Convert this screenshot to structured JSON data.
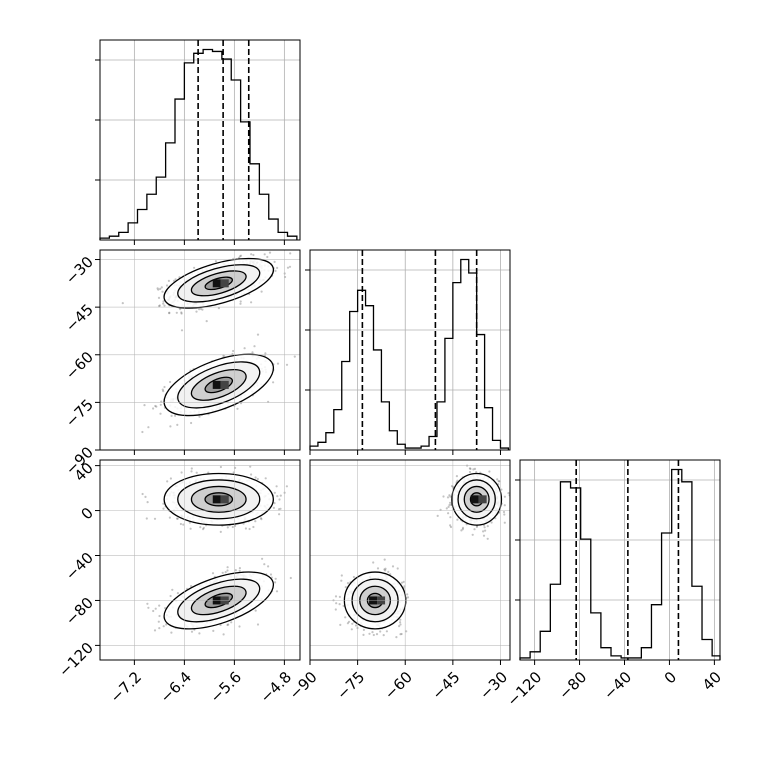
{
  "chart_data": {
    "type": "corner",
    "title": "",
    "parameters": [
      "",
      "",
      ""
    ],
    "grid": true,
    "ranges": [
      [
        -7.75,
        -4.55
      ],
      [
        -90,
        -27
      ],
      [
        -133,
        45
      ]
    ],
    "ticks": [
      [
        "-7.2",
        "-6.4",
        "-5.6",
        "-4.8"
      ],
      [
        "-90",
        "-75",
        "-60",
        "-45",
        "-30"
      ],
      [
        "-120",
        "-80",
        "-40",
        "0",
        "40"
      ]
    ],
    "quantiles": [
      [
        -6.18,
        -5.78,
        -5.37
      ],
      [
        -73.5,
        -50.5,
        -37.5
      ],
      [
        -83,
        -37,
        8
      ]
    ],
    "histograms": [
      {
        "bin_edges": [
          -7.75,
          -7.6,
          -7.45,
          -7.3,
          -7.15,
          -7.0,
          -6.85,
          -6.7,
          -6.55,
          -6.4,
          -6.25,
          -6.1,
          -5.95,
          -5.8,
          -5.65,
          -5.5,
          -5.35,
          -5.2,
          -5.05,
          -4.9,
          -4.75,
          -4.6
        ],
        "counts": [
          0.01,
          0.02,
          0.04,
          0.09,
          0.16,
          0.24,
          0.33,
          0.51,
          0.74,
          0.93,
          0.98,
          1.0,
          0.99,
          0.95,
          0.84,
          0.62,
          0.4,
          0.24,
          0.11,
          0.04,
          0.02
        ]
      },
      {
        "bin_edges": [
          -90,
          -87.5,
          -85,
          -82.5,
          -80,
          -77.5,
          -75,
          -72.5,
          -70,
          -67.5,
          -65,
          -62.5,
          -60,
          -57.5,
          -55,
          -52.5,
          -50,
          -47.5,
          -45,
          -42.5,
          -40,
          -37.5,
          -35,
          -32.5,
          -30,
          -27.5
        ],
        "counts": [
          0.02,
          0.04,
          0.09,
          0.21,
          0.46,
          0.72,
          0.83,
          0.75,
          0.52,
          0.25,
          0.1,
          0.03,
          0.01,
          0.01,
          0.02,
          0.07,
          0.25,
          0.58,
          0.87,
          0.99,
          0.92,
          0.6,
          0.22,
          0.05,
          0.01
        ]
      },
      {
        "bin_edges": [
          -133,
          -124,
          -115,
          -106,
          -97,
          -88,
          -79,
          -70,
          -61,
          -52,
          -43,
          -34,
          -25,
          -16,
          -7,
          2,
          11,
          20,
          29,
          38,
          45
        ],
        "counts": [
          0.01,
          0.04,
          0.14,
          0.37,
          0.87,
          0.84,
          0.59,
          0.23,
          0.06,
          0.02,
          0.01,
          0.01,
          0.06,
          0.27,
          0.62,
          0.93,
          0.87,
          0.36,
          0.1,
          0.02
        ]
      }
    ],
    "clusters": [
      {
        "weight": 0.55,
        "mean": [
          -5.85,
          -37.5,
          10
        ],
        "sd": [
          0.38,
          3.4,
          10
        ],
        "rho": {
          "xy": 0.55,
          "xz": 0.0,
          "yz": 0.0
        }
      },
      {
        "weight": 0.45,
        "mean": [
          -5.85,
          -69.5,
          -80
        ],
        "sd": [
          0.38,
          4.2,
          11
        ],
        "rho": {
          "xy": 0.55,
          "xz": 0.55,
          "yz": 0.0
        }
      }
    ],
    "joint_pairs": [
      {
        "row": 1,
        "col": 0,
        "x": 0,
        "y": 1
      },
      {
        "row": 2,
        "col": 0,
        "x": 0,
        "y": 2
      },
      {
        "row": 2,
        "col": 1,
        "x": 1,
        "y": 2
      }
    ],
    "contour_levels_sigma": [
      0.5,
      1.0,
      1.5,
      2.0
    ]
  }
}
